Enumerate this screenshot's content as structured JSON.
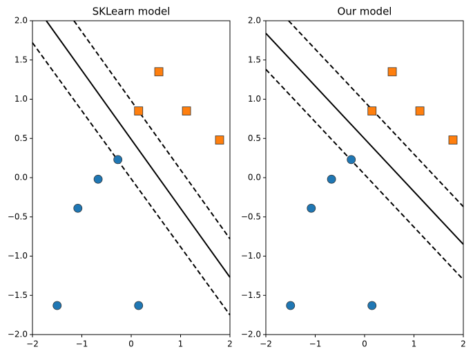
{
  "chart_data": [
    {
      "type": "scatter",
      "title": "SKLearn model",
      "xlim": [
        -2,
        2
      ],
      "ylim": [
        -2,
        2
      ],
      "xticks": [
        {
          "value": -2,
          "label": "−2"
        },
        {
          "value": -1,
          "label": "−1"
        },
        0,
        1,
        2
      ],
      "yticks": [
        {
          "value": -2,
          "label": "−2.0"
        },
        {
          "value": -1.5,
          "label": "−1.5"
        },
        {
          "value": -1,
          "label": "−1.0"
        },
        {
          "value": -0.5,
          "label": "−0.5"
        },
        {
          "value": 0,
          "label": "0.0"
        },
        0.5,
        {
          "value": 1,
          "label": "1.0"
        },
        1.5,
        {
          "value": 2,
          "label": "2.0"
        }
      ],
      "series": [
        {
          "color": "#1f77b4",
          "marker": "circle",
          "x": [
            -1.5,
            -1.08,
            -0.67,
            -0.27,
            0.15
          ],
          "values": [
            -1.63,
            -0.39,
            -0.02,
            0.23,
            -1.63
          ]
        },
        {
          "color": "#ff7f0e",
          "marker": "square",
          "x": [
            0.15,
            0.56,
            1.12,
            1.79
          ],
          "values": [
            0.85,
            1.35,
            0.85,
            0.48
          ]
        }
      ],
      "lines": [
        {
          "style": "solid",
          "x": [
            -1.72,
            2
          ],
          "values": [
            2,
            -1.27
          ]
        },
        {
          "style": "dashed",
          "x": [
            -1.16,
            2
          ],
          "values": [
            2,
            -0.78
          ]
        },
        {
          "style": "dashed",
          "x": [
            -2,
            2
          ],
          "values": [
            1.72,
            -1.75
          ]
        }
      ]
    },
    {
      "type": "scatter",
      "title": "Our model",
      "xlim": [
        -2,
        2
      ],
      "ylim": [
        -2,
        2
      ],
      "xticks": [
        {
          "value": -2,
          "label": "−2"
        },
        {
          "value": -1,
          "label": "−1"
        },
        0,
        1,
        2
      ],
      "yticks": [
        {
          "value": -2,
          "label": "−2.0"
        },
        {
          "value": -1.5,
          "label": "−1.5"
        },
        {
          "value": -1,
          "label": "−1.0"
        },
        {
          "value": -0.5,
          "label": "−0.5"
        },
        {
          "value": 0,
          "label": "0.0"
        },
        0.5,
        {
          "value": 1,
          "label": "1.0"
        },
        1.5,
        {
          "value": 2,
          "label": "2.0"
        }
      ],
      "series": [
        {
          "color": "#1f77b4",
          "marker": "circle",
          "x": [
            -1.5,
            -1.08,
            -0.67,
            -0.27,
            0.15
          ],
          "values": [
            -1.63,
            -0.39,
            -0.02,
            0.23,
            -1.63
          ]
        },
        {
          "color": "#ff7f0e",
          "marker": "square",
          "x": [
            0.15,
            0.56,
            1.12,
            1.79
          ],
          "values": [
            0.85,
            1.35,
            0.85,
            0.48
          ]
        }
      ],
      "lines": [
        {
          "style": "solid",
          "x": [
            -2,
            2
          ],
          "values": [
            1.84,
            -0.85
          ]
        },
        {
          "style": "dashed",
          "x": [
            -1.54,
            2
          ],
          "values": [
            2,
            -0.37
          ]
        },
        {
          "style": "dashed",
          "x": [
            -2,
            2
          ],
          "values": [
            1.38,
            -1.3
          ]
        }
      ]
    }
  ]
}
